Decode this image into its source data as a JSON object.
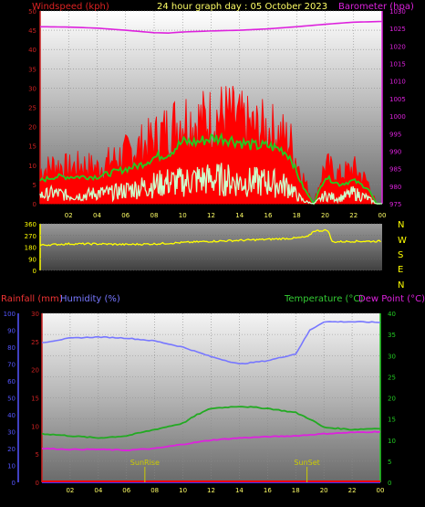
{
  "header": {
    "left_label": "Windspeed (kph)",
    "title": "24 hour graph day : 05 October 2023",
    "right_label": "Barometer (hpa)"
  },
  "colors": {
    "background": "#000000",
    "wind_axis": "#cc2222",
    "barometer": "#dd22dd",
    "gust": "#ff0000",
    "avg_wind": "#22cc22",
    "wind_min": "#ccffcc",
    "direction": "#ffff00",
    "compass": "#ffff00",
    "rain_axis": "#5555ff",
    "humidity": "#7777ff",
    "temperature": "#22aa22",
    "dew_point": "#dd22dd",
    "rainfall_line": "#ff0000",
    "hour_axis": "#3333ff",
    "temp_axis": "#22cc22",
    "sun_marker": "#cccc00"
  },
  "compass": [
    "N",
    "W",
    "S",
    "E",
    "N"
  ],
  "lower_labels": {
    "rainfall": "Rainfall (mm)",
    "humidity": "Humidity (%)",
    "temperature": "Temperature (°C)",
    "dew_point": "Dew Point (°C)",
    "sunrise": "SunRise",
    "sunset": "SunSet"
  },
  "chart_data": [
    {
      "type": "line",
      "title": "24 hour graph day : 05 October 2023",
      "x_ticks": [
        "02",
        "04",
        "06",
        "08",
        "10",
        "12",
        "14",
        "16",
        "18",
        "20",
        "22",
        "00"
      ],
      "x_range_hours": [
        0,
        24
      ],
      "y_left_label": "Windspeed (kph)",
      "y_left_range": [
        0,
        50
      ],
      "y_left_ticks": [
        0,
        5,
        10,
        15,
        20,
        25,
        30,
        35,
        40,
        45,
        50
      ],
      "y_right_label": "Barometer (hpa)",
      "y_right_range": [
        975,
        1030
      ],
      "y_right_ticks": [
        975,
        980,
        985,
        990,
        995,
        1000,
        1005,
        1010,
        1015,
        1020,
        1025,
        1030
      ],
      "series": [
        {
          "name": "Barometer (hpa)",
          "axis": "right",
          "x": [
            0,
            2,
            4,
            6,
            8,
            9,
            10,
            12,
            14,
            16,
            18,
            20,
            22,
            24
          ],
          "values": [
            1025.5,
            1025.4,
            1025.1,
            1024.5,
            1023.8,
            1023.7,
            1024.0,
            1024.3,
            1024.5,
            1024.9,
            1025.5,
            1026.2,
            1026.8,
            1027.0
          ]
        },
        {
          "axis": "left",
          "x": [
            0,
            1,
            2,
            3,
            4,
            5,
            6,
            7,
            8,
            9,
            10,
            11,
            12,
            13,
            14,
            15,
            16,
            17,
            17.6,
            18,
            18.5,
            19.2,
            20,
            21,
            22,
            23,
            23.6,
            24
          ],
          "values": [
            9,
            11,
            10,
            11,
            10,
            12,
            14,
            16,
            18,
            21,
            24,
            23,
            24,
            25,
            23,
            21,
            21,
            19,
            17,
            12,
            7,
            0,
            11,
            8,
            10,
            6,
            0,
            0
          ]
        },
        {
          "axis": "left",
          "x": [
            0,
            1,
            2,
            3,
            4,
            5,
            6,
            7,
            8,
            9,
            10,
            11,
            12,
            13,
            14,
            15,
            16,
            17,
            17.6,
            18,
            18.5,
            19.2,
            20,
            21,
            22,
            23,
            23.6,
            24
          ],
          "values": [
            6,
            7,
            7,
            7,
            7,
            8,
            9,
            10,
            12,
            13,
            16,
            16,
            17,
            17,
            16,
            15,
            15,
            14,
            12,
            8,
            4,
            0,
            7,
            5,
            6,
            4,
            0,
            0
          ]
        },
        {
          "axis": "left",
          "x": [
            0,
            1,
            2,
            3,
            4,
            5,
            6,
            7,
            8,
            9,
            10,
            11,
            12,
            13,
            14,
            15,
            16,
            17,
            17.6,
            18,
            18.5,
            19.2,
            20,
            21,
            22,
            23,
            23.6,
            24
          ],
          "values": [
            3,
            4,
            3,
            3,
            4,
            4,
            5,
            6,
            7,
            8,
            8,
            9,
            9,
            9,
            8,
            8,
            8,
            7,
            6,
            3,
            1,
            0,
            3,
            2,
            4,
            2,
            0,
            0
          ]
        }
      ]
    },
    {
      "type": "line",
      "y_ticks": [
        0,
        90,
        180,
        270,
        360
      ],
      "y_range": [
        0,
        360
      ],
      "x_range_hours": [
        0,
        24
      ],
      "series": [
        {
          "axis": "left",
          "x": [
            0,
            2,
            4,
            6,
            8,
            10,
            12,
            14,
            16,
            18,
            18.8,
            19.2,
            20.2,
            20.5,
            22,
            24
          ],
          "values": [
            195,
            205,
            205,
            200,
            205,
            215,
            225,
            232,
            240,
            250,
            260,
            305,
            310,
            220,
            225,
            225
          ]
        }
      ]
    },
    {
      "type": "line",
      "x_ticks": [
        "02",
        "04",
        "06",
        "08",
        "10",
        "12",
        "14",
        "16",
        "18",
        "20",
        "22",
        "00"
      ],
      "x_range_hours": [
        0,
        24
      ],
      "y_left_label": "Rainfall (mm)",
      "y_left_range": [
        0,
        100
      ],
      "y_left_ticks": [
        0,
        10,
        20,
        30,
        40,
        50,
        60,
        70,
        80,
        90,
        100
      ],
      "y_humidity_range": [
        0,
        30
      ],
      "y_humidity_ticks": [
        0,
        5,
        10,
        15,
        20,
        25,
        30
      ],
      "y_right_label": "Temperature (°C)",
      "y_right_range": [
        0,
        40
      ],
      "y_right_ticks": [
        0,
        5,
        10,
        15,
        20,
        25,
        30,
        35,
        40
      ],
      "sunrise_hour": 7.3,
      "sunset_hour": 18.8,
      "series": [
        {
          "name": "Humidity (%)",
          "axis": "humidity",
          "x": [
            0,
            2,
            4,
            6,
            8,
            10,
            12,
            14,
            16,
            18,
            19,
            20,
            22,
            24
          ],
          "values": [
            24.8,
            25.6,
            25.8,
            25.6,
            25.1,
            24.0,
            22.3,
            21.0,
            21.6,
            22.8,
            27.0,
            28.5,
            28.5,
            28.4
          ]
        },
        {
          "name": "Temperature (°C)",
          "axis": "right",
          "x": [
            0,
            2,
            4,
            6,
            8,
            10,
            11,
            12,
            14,
            16,
            18,
            19,
            20,
            22,
            24
          ],
          "values": [
            11.5,
            11.0,
            10.5,
            11.0,
            12.5,
            14.0,
            16.0,
            17.5,
            18.0,
            17.5,
            16.5,
            15.0,
            13.0,
            12.5,
            12.8
          ]
        },
        {
          "name": "Dew Point (°C)",
          "axis": "right",
          "x": [
            0,
            2,
            4,
            6,
            8,
            10,
            12,
            14,
            16,
            18,
            20,
            22,
            24
          ],
          "values": [
            8.0,
            7.8,
            7.8,
            7.6,
            8.0,
            9.0,
            10.0,
            10.5,
            10.8,
            11.0,
            11.5,
            11.8,
            12.0
          ]
        },
        {
          "name": "Rainfall (mm)",
          "axis": "left",
          "x": [
            0,
            24
          ],
          "values": [
            0,
            0
          ]
        }
      ]
    }
  ]
}
